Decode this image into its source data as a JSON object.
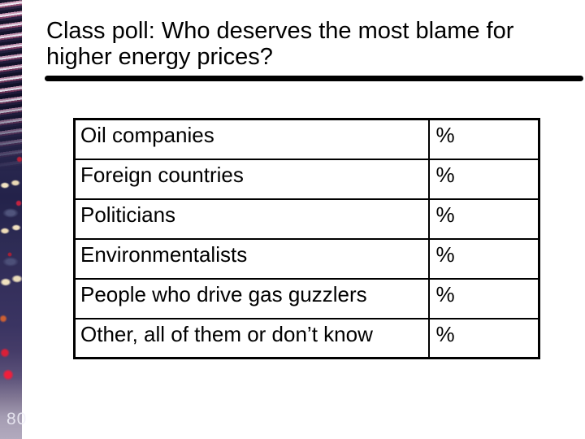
{
  "title": {
    "line1": "Class poll: Who deserves the most blame for",
    "line2": "higher energy prices?"
  },
  "table": {
    "rows": [
      {
        "label": "Oil companies",
        "value": "%"
      },
      {
        "label": "Foreign countries",
        "value": "%"
      },
      {
        "label": "Politicians",
        "value": "%"
      },
      {
        "label": "Environmentalists",
        "value": "%"
      },
      {
        "label": "People who drive gas guzzlers",
        "value": "%"
      },
      {
        "label": "Other, all of them or don’t know",
        "value": "%"
      }
    ]
  },
  "page_number": "80",
  "decor": {
    "left_strip_image": "night-traffic-jam-photo",
    "colors": {
      "text": "#000000",
      "background": "#ffffff",
      "title_rule": "#000000",
      "page_number": "#d9d5e4",
      "strip_dark": "#2b2950",
      "strip_light": "#b2aabe",
      "taillight_red": "#ef1f3c",
      "headlight_cream": "#f1e2c0"
    }
  }
}
